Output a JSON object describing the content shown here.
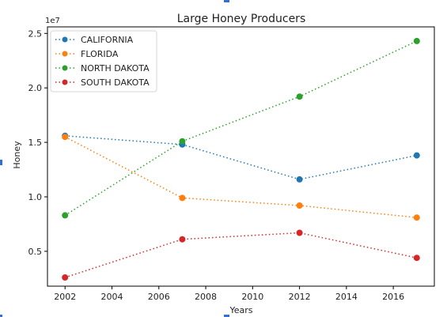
{
  "chart_data": {
    "type": "line",
    "title": "Large Honey Producers",
    "xlabel": "Years",
    "ylabel": "Honey",
    "y_offset_label": "1e7",
    "xlim": [
      2001.25,
      2017.75
    ],
    "ylim": [
      1800000,
      25600000
    ],
    "x_ticks": [
      2002,
      2004,
      2006,
      2008,
      2010,
      2012,
      2014,
      2016
    ],
    "x_tick_labels": [
      "2002",
      "2004",
      "2006",
      "2008",
      "2010",
      "2012",
      "2014",
      "2016"
    ],
    "y_ticks": [
      5000000,
      10000000,
      15000000,
      20000000,
      25000000
    ],
    "y_tick_labels": [
      "0.5",
      "1.0",
      "1.5",
      "2.0",
      "2.5"
    ],
    "legend_position": "top-left",
    "grid": false,
    "x": [
      2002,
      2007,
      2012,
      2017
    ],
    "series": [
      {
        "name": "CALIFORNIA",
        "color": "#1f77b4",
        "values": [
          15600000,
          14800000,
          11600000,
          13800000
        ]
      },
      {
        "name": "FLORIDA",
        "color": "#ff7f0e",
        "values": [
          15500000,
          9900000,
          9200000,
          8100000
        ]
      },
      {
        "name": "NORTH DAKOTA",
        "color": "#2ca02c",
        "values": [
          8300000,
          15100000,
          19200000,
          24300000
        ]
      },
      {
        "name": "SOUTH DAKOTA",
        "color": "#d62728",
        "values": [
          2600000,
          6100000,
          6700000,
          4400000
        ]
      }
    ]
  }
}
